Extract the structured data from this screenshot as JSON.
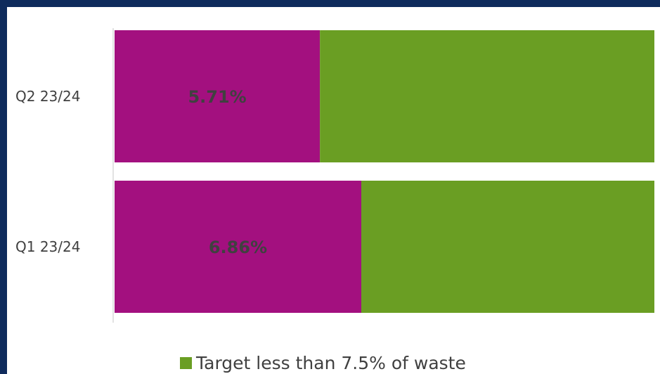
{
  "chart_data": {
    "type": "bar",
    "orientation": "horizontal",
    "stacked": true,
    "categories": [
      "Q2 23/24",
      "Q1 23/24"
    ],
    "series": [
      {
        "values": [
          5.71,
          6.86
        ],
        "color": "#a3107f",
        "data_labels": [
          "5.71%",
          "6.86%"
        ]
      },
      {
        "name": "Target less than 7.5% of waste",
        "values": [
          9.3,
          8.15
        ],
        "color": "#6a9e23"
      }
    ],
    "xlim": [
      0,
      15.01
    ],
    "grid": false,
    "legend": "bottom"
  }
}
